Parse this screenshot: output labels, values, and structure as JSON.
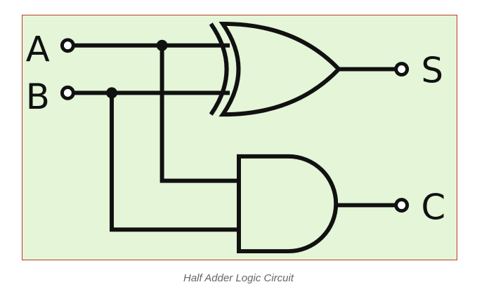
{
  "diagram": {
    "inputs": [
      {
        "label": "A"
      },
      {
        "label": "B"
      }
    ],
    "outputs": [
      {
        "label": "S"
      },
      {
        "label": "C"
      }
    ],
    "gates": [
      {
        "type": "XOR",
        "inputs": [
          "A",
          "B"
        ],
        "output": "S"
      },
      {
        "type": "AND",
        "inputs": [
          "A",
          "B"
        ],
        "output": "C"
      }
    ]
  },
  "caption": "Half Adder Logic Circuit",
  "colors": {
    "background": "#e4f5d8",
    "border": "#c0392b",
    "wire": "#111111",
    "caption_text": "#666666"
  }
}
